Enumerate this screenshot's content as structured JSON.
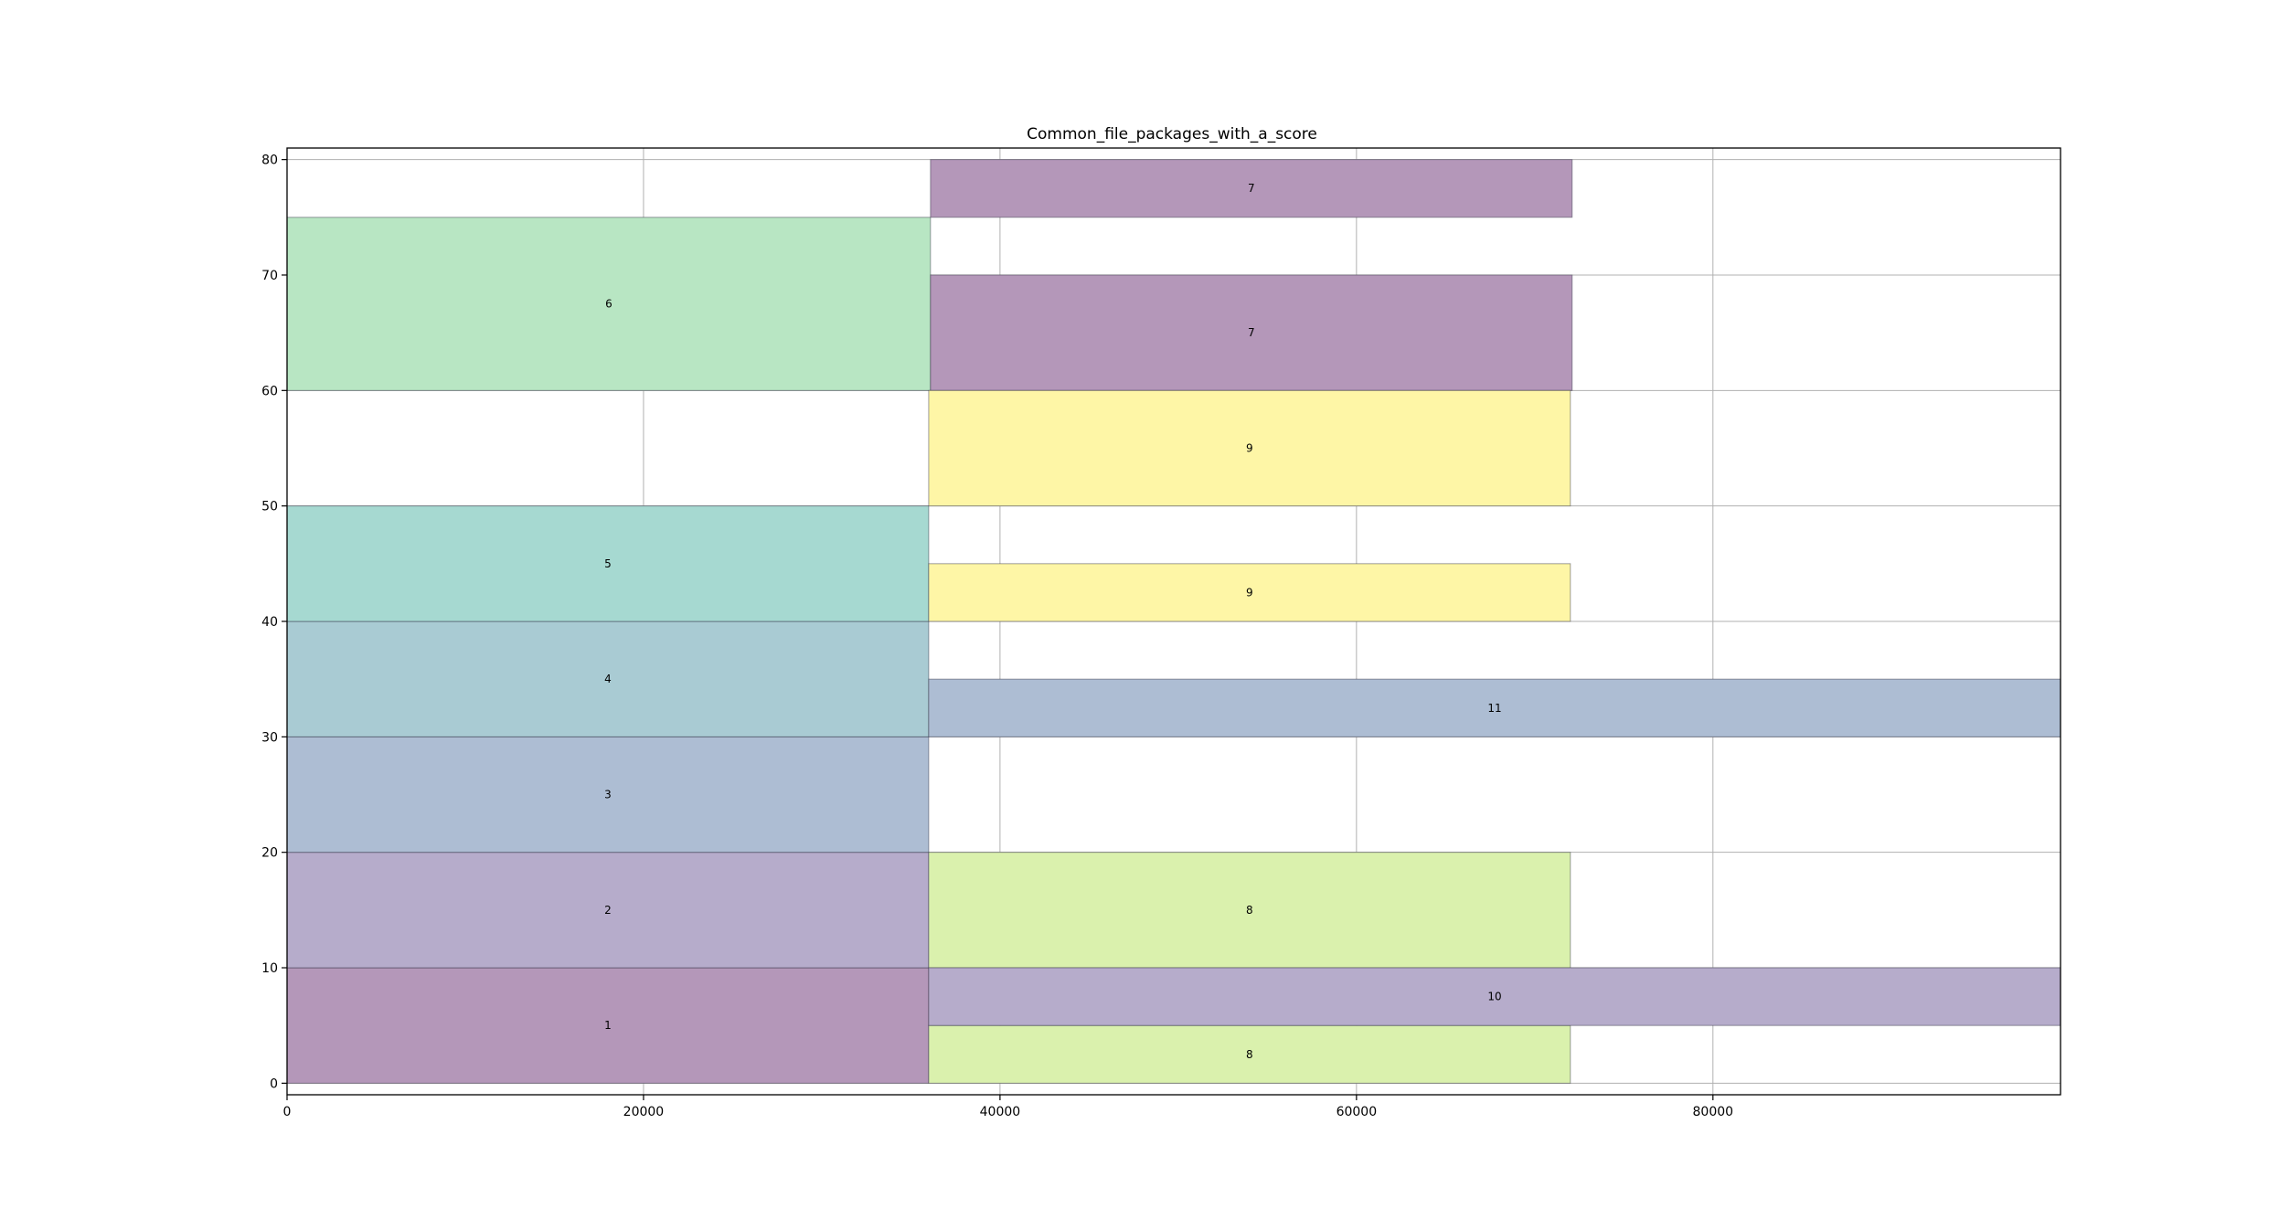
{
  "chart_data": {
    "type": "bar",
    "title": "Common_file_packages_with_a_score",
    "xlabel": "",
    "ylabel": "",
    "xlim": [
      0,
      99500
    ],
    "ylim": [
      -1,
      81
    ],
    "xticks": [
      "0",
      "20000",
      "40000",
      "60000",
      "80000"
    ],
    "xtick_values": [
      0,
      20000,
      40000,
      60000,
      80000
    ],
    "yticks": [
      "0",
      "10",
      "20",
      "30",
      "40",
      "50",
      "60",
      "70",
      "80"
    ],
    "ytick_values": [
      0,
      10,
      20,
      30,
      40,
      50,
      60,
      70,
      80
    ],
    "grid": true,
    "boxes": [
      {
        "label": "1",
        "x0": 0,
        "x1": 36000,
        "y0": 0,
        "y1": 10,
        "color": "#b497b9"
      },
      {
        "label": "2",
        "x0": 0,
        "x1": 36000,
        "y0": 10,
        "y1": 20,
        "color": "#b6accb"
      },
      {
        "label": "3",
        "x0": 0,
        "x1": 36000,
        "y0": 20,
        "y1": 30,
        "color": "#adbdd3"
      },
      {
        "label": "4",
        "x0": 0,
        "x1": 36000,
        "y0": 30,
        "y1": 40,
        "color": "#a9cbd3"
      },
      {
        "label": "5",
        "x0": 0,
        "x1": 36000,
        "y0": 40,
        "y1": 50,
        "color": "#a6d9d1"
      },
      {
        "label": "6",
        "x0": 0,
        "x1": 36100,
        "y0": 60,
        "y1": 75,
        "color": "#b8e6c3"
      },
      {
        "label": "7",
        "x0": 36100,
        "x1": 72100,
        "y0": 60,
        "y1": 70,
        "color": "#b497b9"
      },
      {
        "label": "7",
        "x0": 36100,
        "x1": 72100,
        "y0": 75,
        "y1": 80,
        "color": "#b497b9"
      },
      {
        "label": "8",
        "x0": 36000,
        "x1": 72000,
        "y0": 0,
        "y1": 5,
        "color": "#daf1ad"
      },
      {
        "label": "8",
        "x0": 36000,
        "x1": 72000,
        "y0": 10,
        "y1": 20,
        "color": "#daf1ad"
      },
      {
        "label": "9",
        "x0": 36000,
        "x1": 72000,
        "y0": 40,
        "y1": 45,
        "color": "#fef6a6"
      },
      {
        "label": "9",
        "x0": 36000,
        "x1": 72000,
        "y0": 50,
        "y1": 60,
        "color": "#fef6a6"
      },
      {
        "label": "10",
        "x0": 36000,
        "x1": 99500,
        "y0": 5,
        "y1": 10,
        "color": "#b6accb"
      },
      {
        "label": "11",
        "x0": 36000,
        "x1": 99500,
        "y0": 30,
        "y1": 35,
        "color": "#adbdd3"
      }
    ]
  }
}
